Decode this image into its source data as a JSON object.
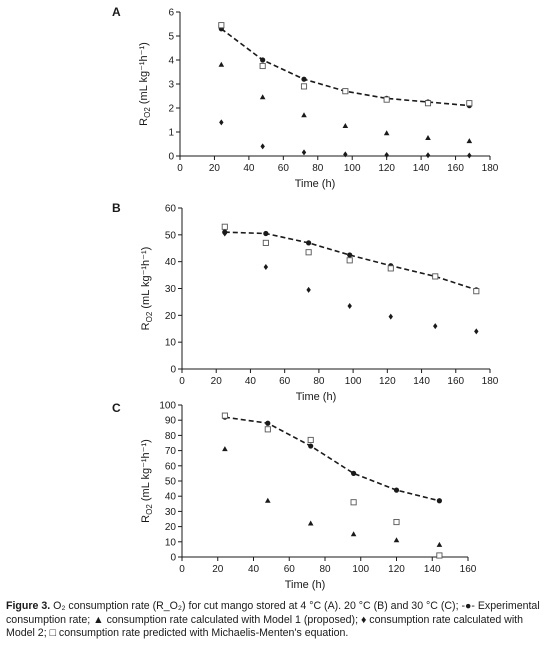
{
  "chart_data": [
    {
      "type": "scatter",
      "panel_label": "A",
      "xlabel": "Time (h)",
      "ylabel": "R",
      "ylabel_sub": "O2",
      "ylabel_unit": "(mL kg⁻¹h⁻¹)",
      "xlim": [
        0,
        180
      ],
      "ylim": [
        0,
        6
      ],
      "xticks": [
        0,
        20,
        40,
        60,
        80,
        100,
        120,
        140,
        160,
        180
      ],
      "yticks": [
        0,
        1,
        2,
        3,
        4,
        5,
        6
      ],
      "grid": false,
      "series": [
        {
          "marker": "circle-dashed",
          "x": [
            24,
            48,
            72,
            96,
            120,
            144,
            168
          ],
          "y": [
            5.3,
            4.0,
            3.2,
            2.7,
            2.4,
            2.25,
            2.1
          ]
        },
        {
          "marker": "triangle",
          "x": [
            24,
            48,
            72,
            96,
            120,
            144,
            168
          ],
          "y": [
            3.8,
            2.45,
            1.7,
            1.25,
            0.95,
            0.75,
            0.62
          ]
        },
        {
          "marker": "diamond",
          "x": [
            24,
            48,
            72,
            96,
            120,
            144,
            168
          ],
          "y": [
            1.4,
            0.4,
            0.15,
            0.07,
            0.04,
            0.03,
            0.02
          ]
        },
        {
          "marker": "open-square",
          "x": [
            24,
            48,
            72,
            96,
            120,
            144,
            168
          ],
          "y": [
            5.45,
            3.75,
            2.9,
            2.7,
            2.35,
            2.2,
            2.2
          ]
        }
      ]
    },
    {
      "type": "scatter",
      "panel_label": "B",
      "xlabel": "Time (h)",
      "ylabel": "R",
      "ylabel_sub": "O2",
      "ylabel_unit": "(mL kg⁻¹h⁻¹)",
      "xlim": [
        0,
        180
      ],
      "ylim": [
        0,
        60
      ],
      "xticks": [
        0,
        20,
        40,
        60,
        80,
        100,
        120,
        140,
        160,
        180
      ],
      "yticks": [
        0,
        10,
        20,
        30,
        40,
        50,
        60
      ],
      "grid": false,
      "series": [
        {
          "marker": "circle-dashed",
          "x": [
            25,
            49,
            74,
            98,
            122,
            148,
            172
          ],
          "y": [
            51,
            50.5,
            47,
            42.5,
            38.5,
            34.5,
            29.5
          ]
        },
        {
          "marker": "diamond",
          "x": [
            25,
            49,
            74,
            98,
            122,
            148,
            172
          ],
          "y": [
            50.5,
            38,
            29.5,
            23.5,
            19.5,
            16,
            14
          ]
        },
        {
          "marker": "open-square",
          "x": [
            25,
            49,
            74,
            98,
            122,
            148,
            172
          ],
          "y": [
            53,
            47,
            43.5,
            40.5,
            37.5,
            34.5,
            29
          ]
        }
      ]
    },
    {
      "type": "scatter",
      "panel_label": "C",
      "xlabel": "Time (h)",
      "ylabel": "R",
      "ylabel_sub": "O2",
      "ylabel_unit": "(mL kg⁻¹h⁻¹)",
      "xlim": [
        0,
        160
      ],
      "ylim": [
        0,
        100
      ],
      "xticks": [
        0,
        20,
        40,
        60,
        80,
        100,
        120,
        140,
        160
      ],
      "yticks": [
        0,
        10,
        20,
        30,
        40,
        50,
        60,
        70,
        80,
        90,
        100
      ],
      "grid": false,
      "series": [
        {
          "marker": "circle-dashed",
          "x": [
            24,
            48,
            72,
            96,
            120,
            144
          ],
          "y": [
            92,
            88,
            73,
            55,
            44,
            37
          ]
        },
        {
          "marker": "triangle",
          "x": [
            24,
            48,
            72,
            96,
            120,
            144
          ],
          "y": [
            71,
            37,
            22,
            15,
            11,
            8
          ]
        },
        {
          "marker": "open-square",
          "x": [
            24,
            48,
            72,
            96,
            120,
            144
          ],
          "y": [
            93,
            84,
            77,
            36,
            23,
            1
          ]
        }
      ]
    }
  ],
  "caption": {
    "figure_label": "Figure 3.",
    "text": "O₂ consumption rate (R_O₂) for cut mango stored at 4 °C (A). 20 °C (B) and 30 °C (C); -●- Experimental consumption rate; ▲ consumption rate calculated with Model 1 (proposed); ♦ consumption rate calculated with Model 2; □ consumption rate predicted with Michaelis-Menten's equation."
  }
}
